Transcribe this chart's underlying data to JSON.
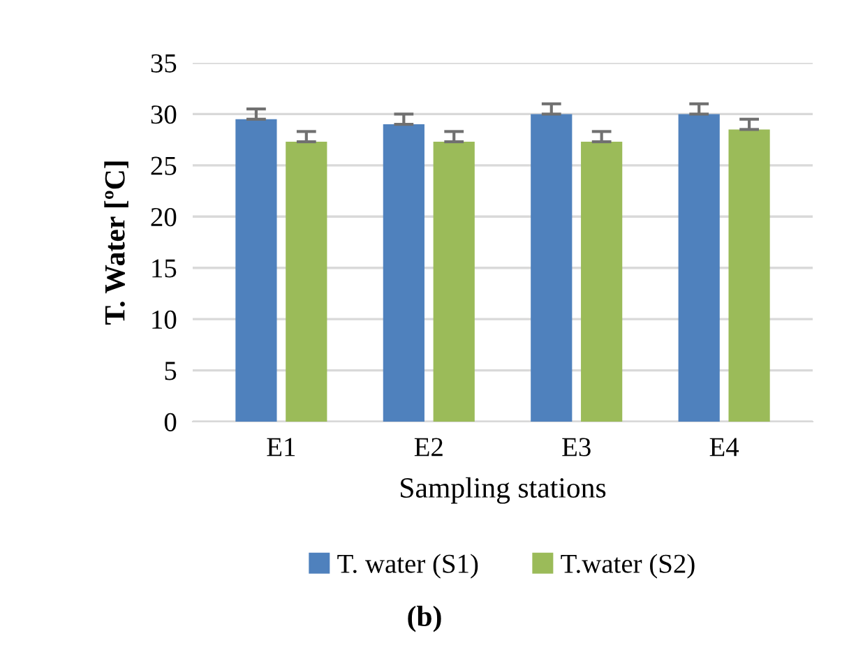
{
  "chart_data": {
    "type": "bar",
    "xlabel": "Sampling stations",
    "ylabel": "T. Water [ºC]",
    "categories": [
      "E1",
      "E2",
      "E3",
      "E4"
    ],
    "series": [
      {
        "name": "T. water (S1)",
        "color": "#4f81bd",
        "values": [
          29.5,
          29.0,
          30.0,
          30.0
        ],
        "errors": [
          1,
          1,
          1,
          1
        ]
      },
      {
        "name": "T.water (S2)",
        "color": "#9bbb59",
        "values": [
          27.3,
          27.3,
          27.3,
          28.5
        ],
        "errors": [
          1,
          1,
          1,
          1
        ]
      }
    ],
    "ylim": [
      0,
      35
    ],
    "yticks": [
      0,
      5,
      10,
      15,
      20,
      25,
      30,
      35
    ],
    "grid": "y",
    "legend": "bottom",
    "annotations": [
      "(b)"
    ]
  }
}
